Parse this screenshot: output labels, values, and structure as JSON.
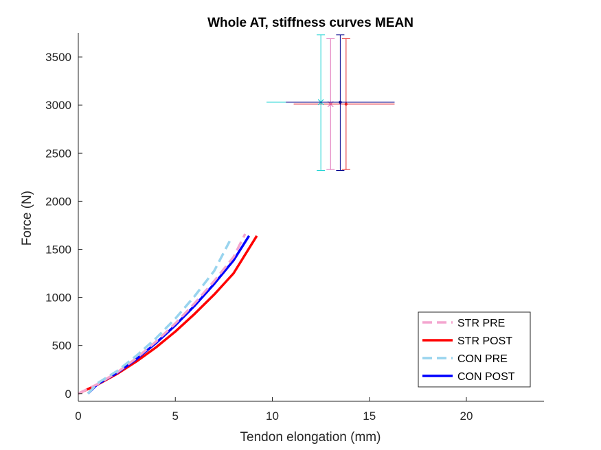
{
  "chart_data": {
    "type": "line",
    "title": "Whole AT, stiffness curves MEAN",
    "xlabel": "Tendon elongation (mm)",
    "ylabel": "Force (N)",
    "xlim": [
      0,
      24
    ],
    "ylim": [
      -80,
      3750
    ],
    "xticks": [
      "0",
      "5",
      "10",
      "15",
      "20"
    ],
    "yticks": [
      "0",
      "500",
      "1000",
      "1500",
      "2000",
      "2500",
      "3000",
      "3500"
    ],
    "grid": false,
    "legend_position": "bottom-right",
    "series": [
      {
        "name": "STR PRE",
        "color": "#f4a6cf",
        "style": "dashed",
        "x": [
          0,
          1,
          2,
          3,
          4,
          5,
          6,
          7,
          8,
          8.6
        ],
        "y": [
          0,
          100,
          220,
          370,
          540,
          730,
          940,
          1170,
          1420,
          1660
        ]
      },
      {
        "name": "STR POST",
        "color": "#ff0000",
        "style": "solid",
        "x": [
          0,
          1,
          2,
          3,
          4,
          5,
          6,
          7,
          8,
          9.2
        ],
        "y": [
          0,
          95,
          205,
          335,
          480,
          645,
          830,
          1030,
          1250,
          1640
        ]
      },
      {
        "name": "CON PRE",
        "color": "#99d4ee",
        "style": "dashed",
        "x": [
          0.5,
          1,
          2,
          3,
          4,
          5,
          6,
          7,
          7.8
        ],
        "y": [
          0,
          110,
          235,
          395,
          575,
          780,
          1015,
          1275,
          1585
        ]
      },
      {
        "name": "CON POST",
        "color": "#0000ff",
        "style": "solid",
        "x": [
          0.5,
          1,
          2,
          3,
          4,
          5,
          6,
          7,
          8,
          8.8
        ],
        "y": [
          0,
          100,
          215,
          360,
          525,
          710,
          915,
          1140,
          1385,
          1640
        ]
      }
    ],
    "error_points": [
      {
        "name": "STR PRE",
        "color": "#e070b8",
        "marker": "x",
        "x": 13.0,
        "y": 3010,
        "x_err": [
          11.1,
          16.3
        ],
        "y_err": [
          2330,
          3690
        ]
      },
      {
        "name": "STR POST",
        "color": "#e62020",
        "marker": "dot",
        "x": 13.8,
        "y": 3010,
        "x_err": [
          11.1,
          16.3
        ],
        "y_err": [
          2330,
          3690
        ]
      },
      {
        "name": "CON PRE",
        "color": "#22d4d4",
        "marker": "x",
        "x": 12.5,
        "y": 3030,
        "x_err": [
          9.7,
          16.3
        ],
        "y_err": [
          2320,
          3730
        ]
      },
      {
        "name": "CON POST",
        "color": "#00008b",
        "marker": "dot",
        "x": 13.5,
        "y": 3030,
        "x_err": [
          10.7,
          16.3
        ],
        "y_err": [
          2320,
          3730
        ]
      }
    ]
  }
}
